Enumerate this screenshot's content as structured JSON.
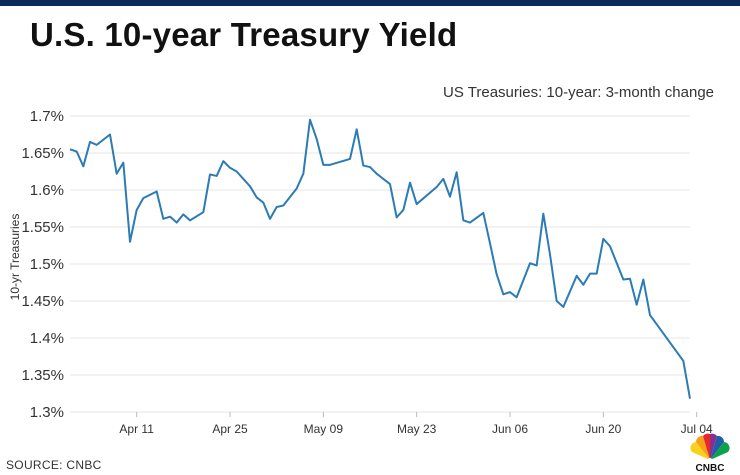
{
  "header": {
    "title": "U.S. 10-year Treasury Yield",
    "subtitle": "US Treasuries: 10-year: 3-month change"
  },
  "footer": {
    "source": "SOURCE: CNBC",
    "logo_text": "CNBC"
  },
  "colors": {
    "line": "#2b7bb5",
    "top_bar": "#0a2a5e",
    "grid": "#e6e6e6"
  },
  "chart_data": {
    "type": "line",
    "title": "U.S. 10-year Treasury Yield",
    "subtitle": "US Treasuries: 10-year: 3-month change",
    "xlabel": "",
    "ylabel": "10-yr Treasuries",
    "ylim": [
      1.3,
      1.7
    ],
    "yticks": [
      1.3,
      1.35,
      1.4,
      1.45,
      1.5,
      1.55,
      1.6,
      1.65,
      1.7
    ],
    "ytick_labels": [
      "1.3%",
      "1.35%",
      "1.4%",
      "1.45%",
      "1.5%",
      "1.55%",
      "1.6%",
      "1.65%",
      "1.7%"
    ],
    "xticks": [
      {
        "label": "Apr 11",
        "day": 10
      },
      {
        "label": "Apr 25",
        "day": 24
      },
      {
        "label": "May 09",
        "day": 38
      },
      {
        "label": "May 23",
        "day": 52
      },
      {
        "label": "Jun 06",
        "day": 66
      },
      {
        "label": "Jun 20",
        "day": 80
      },
      {
        "label": "Jul 04",
        "day": 94
      }
    ],
    "grid": true,
    "series": [
      {
        "name": "",
        "points": [
          {
            "x": 0,
            "y": 1.655
          },
          {
            "x": 1,
            "y": 1.652
          },
          {
            "x": 2,
            "y": 1.632
          },
          {
            "x": 3,
            "y": 1.665
          },
          {
            "x": 4,
            "y": 1.661
          },
          {
            "x": 6,
            "y": 1.675
          },
          {
            "x": 7,
            "y": 1.622
          },
          {
            "x": 8,
            "y": 1.637
          },
          {
            "x": 9,
            "y": 1.53
          },
          {
            "x": 10,
            "y": 1.573
          },
          {
            "x": 11,
            "y": 1.589
          },
          {
            "x": 13,
            "y": 1.598
          },
          {
            "x": 14,
            "y": 1.561
          },
          {
            "x": 15,
            "y": 1.564
          },
          {
            "x": 16,
            "y": 1.556
          },
          {
            "x": 17,
            "y": 1.567
          },
          {
            "x": 18,
            "y": 1.559
          },
          {
            "x": 20,
            "y": 1.57
          },
          {
            "x": 21,
            "y": 1.621
          },
          {
            "x": 22,
            "y": 1.619
          },
          {
            "x": 23,
            "y": 1.639
          },
          {
            "x": 24,
            "y": 1.63
          },
          {
            "x": 25,
            "y": 1.625
          },
          {
            "x": 27,
            "y": 1.605
          },
          {
            "x": 28,
            "y": 1.59
          },
          {
            "x": 29,
            "y": 1.583
          },
          {
            "x": 30,
            "y": 1.561
          },
          {
            "x": 31,
            "y": 1.577
          },
          {
            "x": 32,
            "y": 1.579
          },
          {
            "x": 34,
            "y": 1.602
          },
          {
            "x": 35,
            "y": 1.622
          },
          {
            "x": 36,
            "y": 1.695
          },
          {
            "x": 37,
            "y": 1.669
          },
          {
            "x": 38,
            "y": 1.634
          },
          {
            "x": 39,
            "y": 1.634
          },
          {
            "x": 42,
            "y": 1.642
          },
          {
            "x": 43,
            "y": 1.682
          },
          {
            "x": 44,
            "y": 1.633
          },
          {
            "x": 45,
            "y": 1.631
          },
          {
            "x": 46,
            "y": 1.622
          },
          {
            "x": 48,
            "y": 1.608
          },
          {
            "x": 49,
            "y": 1.563
          },
          {
            "x": 50,
            "y": 1.573
          },
          {
            "x": 51,
            "y": 1.61
          },
          {
            "x": 52,
            "y": 1.581
          },
          {
            "x": 55,
            "y": 1.604
          },
          {
            "x": 56,
            "y": 1.615
          },
          {
            "x": 57,
            "y": 1.591
          },
          {
            "x": 58,
            "y": 1.624
          },
          {
            "x": 59,
            "y": 1.559
          },
          {
            "x": 60,
            "y": 1.556
          },
          {
            "x": 62,
            "y": 1.569
          },
          {
            "x": 63,
            "y": 1.528
          },
          {
            "x": 64,
            "y": 1.486
          },
          {
            "x": 65,
            "y": 1.459
          },
          {
            "x": 66,
            "y": 1.462
          },
          {
            "x": 67,
            "y": 1.455
          },
          {
            "x": 69,
            "y": 1.501
          },
          {
            "x": 70,
            "y": 1.498
          },
          {
            "x": 71,
            "y": 1.568
          },
          {
            "x": 72,
            "y": 1.513
          },
          {
            "x": 73,
            "y": 1.45
          },
          {
            "x": 74,
            "y": 1.442
          },
          {
            "x": 76,
            "y": 1.484
          },
          {
            "x": 77,
            "y": 1.472
          },
          {
            "x": 78,
            "y": 1.487
          },
          {
            "x": 79,
            "y": 1.487
          },
          {
            "x": 80,
            "y": 1.534
          },
          {
            "x": 81,
            "y": 1.524
          },
          {
            "x": 83,
            "y": 1.479
          },
          {
            "x": 84,
            "y": 1.48
          },
          {
            "x": 85,
            "y": 1.445
          },
          {
            "x": 86,
            "y": 1.479
          },
          {
            "x": 87,
            "y": 1.431
          },
          {
            "x": 92,
            "y": 1.369
          },
          {
            "x": 93,
            "y": 1.318
          }
        ]
      }
    ]
  }
}
